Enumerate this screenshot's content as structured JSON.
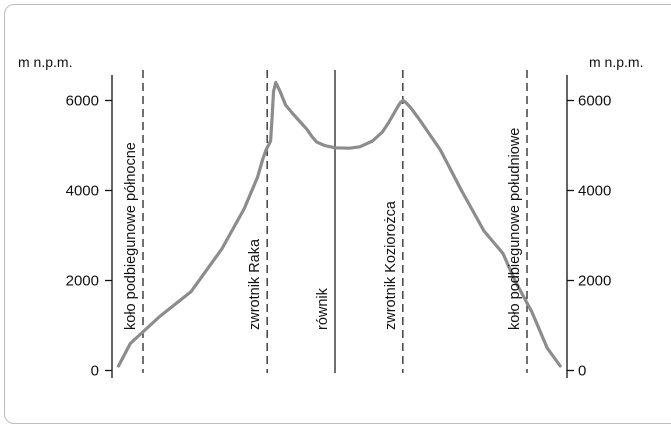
{
  "chart_data": {
    "type": "line",
    "y_unit_left": "m n.p.m.",
    "y_unit_right": "m n.p.m.",
    "yticks": [
      0,
      2000,
      4000,
      6000
    ],
    "ylim": [
      0,
      6500
    ],
    "xlim": [
      -70,
      60
    ],
    "grid": false,
    "reference_lines": [
      {
        "label": "koło podbiegunowe północne",
        "lat": 66.5,
        "style": "dashed"
      },
      {
        "label": "zwrotnik  Raka",
        "lat": 23.5,
        "style": "dashed"
      },
      {
        "label": "równik",
        "lat": 0,
        "style": "solid"
      },
      {
        "label": "zwrotnik  Koziorożca",
        "lat": -23.5,
        "style": "dashed"
      },
      {
        "label": "koło podbiegunowe południowe",
        "lat": -66.5,
        "style": "dashed"
      }
    ],
    "series": [
      {
        "color": "#8c8c8c",
        "lat": [
          -78.0,
          -73.5,
          -68.2,
          -62.3,
          -58.2,
          -51.6,
          -43.8,
          -36.5,
          -29.0,
          -26.1,
          -24.3,
          -23.5,
          -22.6,
          -21.6,
          -20.3,
          -18.5,
          -16.4,
          -13.0,
          -8.6,
          -5.0,
          0.0,
          3.6,
          6.4,
          8.0,
          9.6,
          11.7,
          14.5,
          17.1,
          19.0,
          20.5,
          20.9,
          21.3,
          21.7,
          22.3,
          23.9,
          25.0,
          26.8,
          31.4,
          39.2,
          49.9,
          60.7,
          70.9,
          75.0
        ],
        "elevation": [
          100,
          500,
          1300,
          2000,
          2600,
          3100,
          4000,
          4900,
          5600,
          5850,
          5970,
          6000,
          5950,
          5850,
          5700,
          5500,
          5300,
          5100,
          4970,
          4940,
          4950,
          5000,
          5080,
          5200,
          5350,
          5500,
          5700,
          5900,
          6200,
          6400,
          6300,
          6200,
          5700,
          5100,
          4900,
          4700,
          4300,
          3600,
          2700,
          1750,
          1200,
          600,
          100
        ]
      }
    ]
  }
}
